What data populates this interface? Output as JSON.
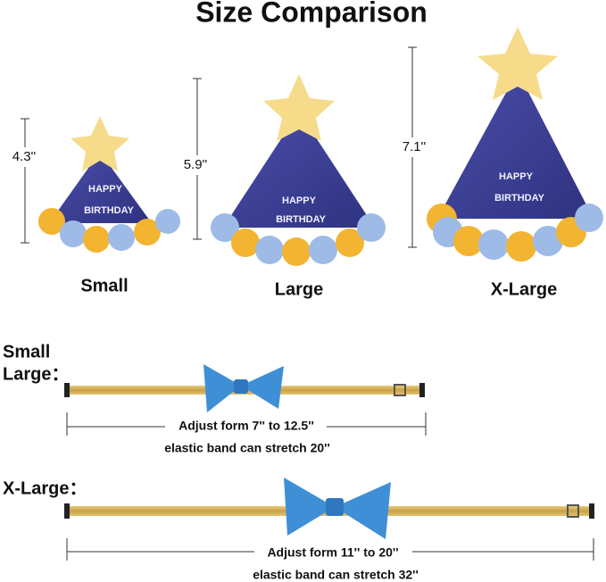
{
  "header": {
    "title": "Size Comparison"
  },
  "hats": [
    {
      "height": "4.3''",
      "size": "Small",
      "print": [
        "HAPPY",
        "BIRTHDAY"
      ]
    },
    {
      "height": "5.9''",
      "size": "Large",
      "print": [
        "HAPPY",
        "BIRTHDAY"
      ]
    },
    {
      "height": "7.1''",
      "size": "X-Large",
      "print": [
        "HAPPY",
        "BIRTHDAY"
      ]
    }
  ],
  "collars": [
    {
      "label": [
        "Small",
        "Large："
      ],
      "adjust": "Adjust form 7'' to 12.5''",
      "stretch": "elastic band can stretch 20''"
    },
    {
      "label": [
        "X-Large："
      ],
      "adjust": "Adjust form 11'' to 20''",
      "stretch": "elastic band can stretch 32''"
    }
  ]
}
